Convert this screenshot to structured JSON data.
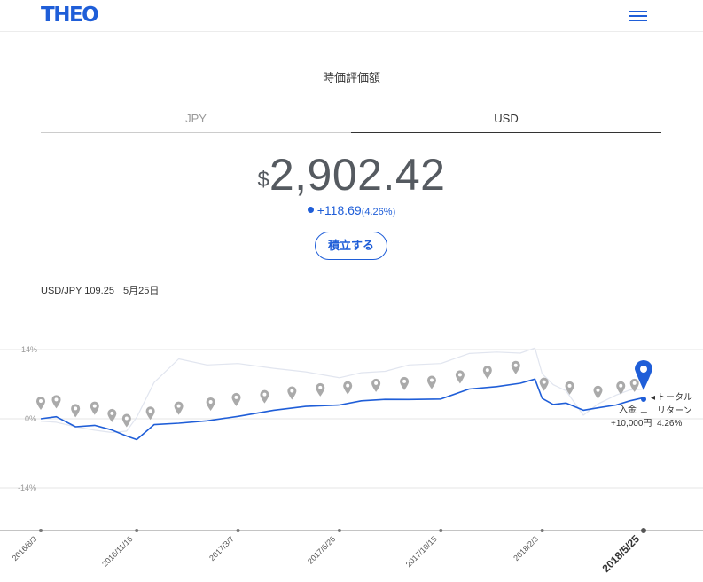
{
  "header": {
    "logo": "THEO",
    "menu_icon": "hamburger-icon"
  },
  "section_title": "時価評価額",
  "tabs": [
    {
      "label": "JPY",
      "active": false
    },
    {
      "label": "USD",
      "active": true
    }
  ],
  "valuation": {
    "currency_symbol": "$",
    "amount": "2,902.42",
    "change": "+118.69",
    "change_pct": "(4.26%)"
  },
  "deposit_button": "積立する",
  "fx": {
    "label": "USD/JPY 109.25",
    "date": "5月25日"
  },
  "colors": {
    "accent": "#1f5ed8",
    "benchmark": "#e1e5ef",
    "marker": "#aaaaaa"
  },
  "chart_data": {
    "type": "line",
    "y_axis": {
      "ticks": [
        "14%",
        "0%",
        "-14%"
      ],
      "ylim": [
        -22,
        17
      ]
    },
    "x_ticks": [
      "2016/8/3",
      "2016/11/16",
      "2017/3/7",
      "2017/6/26",
      "2017/10/15",
      "2018/2/3",
      "2018/5/25"
    ],
    "series": [
      {
        "role": "portfolio",
        "color": "#1f5ed8",
        "x": [
          "2016-08-03",
          "2016-08-20",
          "2016-09-10",
          "2016-10-01",
          "2016-10-20",
          "2016-11-05",
          "2016-11-16",
          "2016-12-05",
          "2017-01-01",
          "2017-02-01",
          "2017-03-07",
          "2017-04-15",
          "2017-05-20",
          "2017-06-26",
          "2017-07-20",
          "2017-08-15",
          "2017-09-10",
          "2017-10-15",
          "2017-11-15",
          "2017-12-15",
          "2018-01-10",
          "2018-01-26",
          "2018-02-03",
          "2018-02-15",
          "2018-03-01",
          "2018-03-20",
          "2018-04-05",
          "2018-04-25",
          "2018-05-10",
          "2018-05-25"
        ],
        "y": [
          0,
          0.3,
          -1.5,
          -1,
          -2.5,
          -3.5,
          -4,
          -1.5,
          -1,
          -0.3,
          0.8,
          1.5,
          2.5,
          3,
          3.3,
          3.8,
          4,
          4.3,
          5.8,
          6.5,
          7.4,
          7.7,
          4,
          3,
          3.5,
          1.5,
          2.2,
          3,
          3.3,
          4.26
        ]
      },
      {
        "role": "benchmark",
        "color": "#e1e5ef",
        "x": [
          "2016-08-03",
          "2016-08-20",
          "2016-09-10",
          "2016-10-01",
          "2016-10-20",
          "2016-11-05",
          "2016-11-16",
          "2016-12-05",
          "2017-01-01",
          "2017-02-01",
          "2017-03-07",
          "2017-04-15",
          "2017-05-20",
          "2017-06-26",
          "2017-07-20",
          "2017-08-15",
          "2017-09-10",
          "2017-10-15",
          "2017-11-15",
          "2017-12-15",
          "2018-01-10",
          "2018-01-26",
          "2018-02-03",
          "2018-02-15",
          "2018-03-01",
          "2018-03-20",
          "2018-04-05",
          "2018-04-25",
          "2018-05-10",
          "2018-05-25"
        ],
        "y": [
          -0.5,
          -0.8,
          -1.5,
          -2,
          -3,
          -2.5,
          0.5,
          7,
          12,
          11,
          11.5,
          10,
          9.5,
          8.5,
          9,
          9.5,
          11,
          11.5,
          13,
          13.5,
          13.5,
          14,
          9,
          7,
          6,
          0.5,
          3,
          5,
          5.5,
          6
        ]
      }
    ],
    "deposit_markers": [
      "2016-08-03",
      "2016-08-20",
      "2016-09-10",
      "2016-10-01",
      "2016-10-20",
      "2016-11-05",
      "2016-12-01",
      "2017-01-01",
      "2017-02-05",
      "2017-03-05",
      "2017-04-05",
      "2017-05-05",
      "2017-06-05",
      "2017-07-05",
      "2017-08-05",
      "2017-09-05",
      "2017-10-05",
      "2017-11-05",
      "2017-12-05",
      "2018-01-05",
      "2018-02-05",
      "2018-03-05",
      "2018-04-05",
      "2018-04-30",
      "2018-05-15"
    ],
    "annotations": {
      "deposit_label": "入金",
      "deposit_amount": "+10,000円",
      "total_return_label_1": "トータル",
      "total_return_label_2": "リターン",
      "total_return_value": "4.26%"
    }
  }
}
